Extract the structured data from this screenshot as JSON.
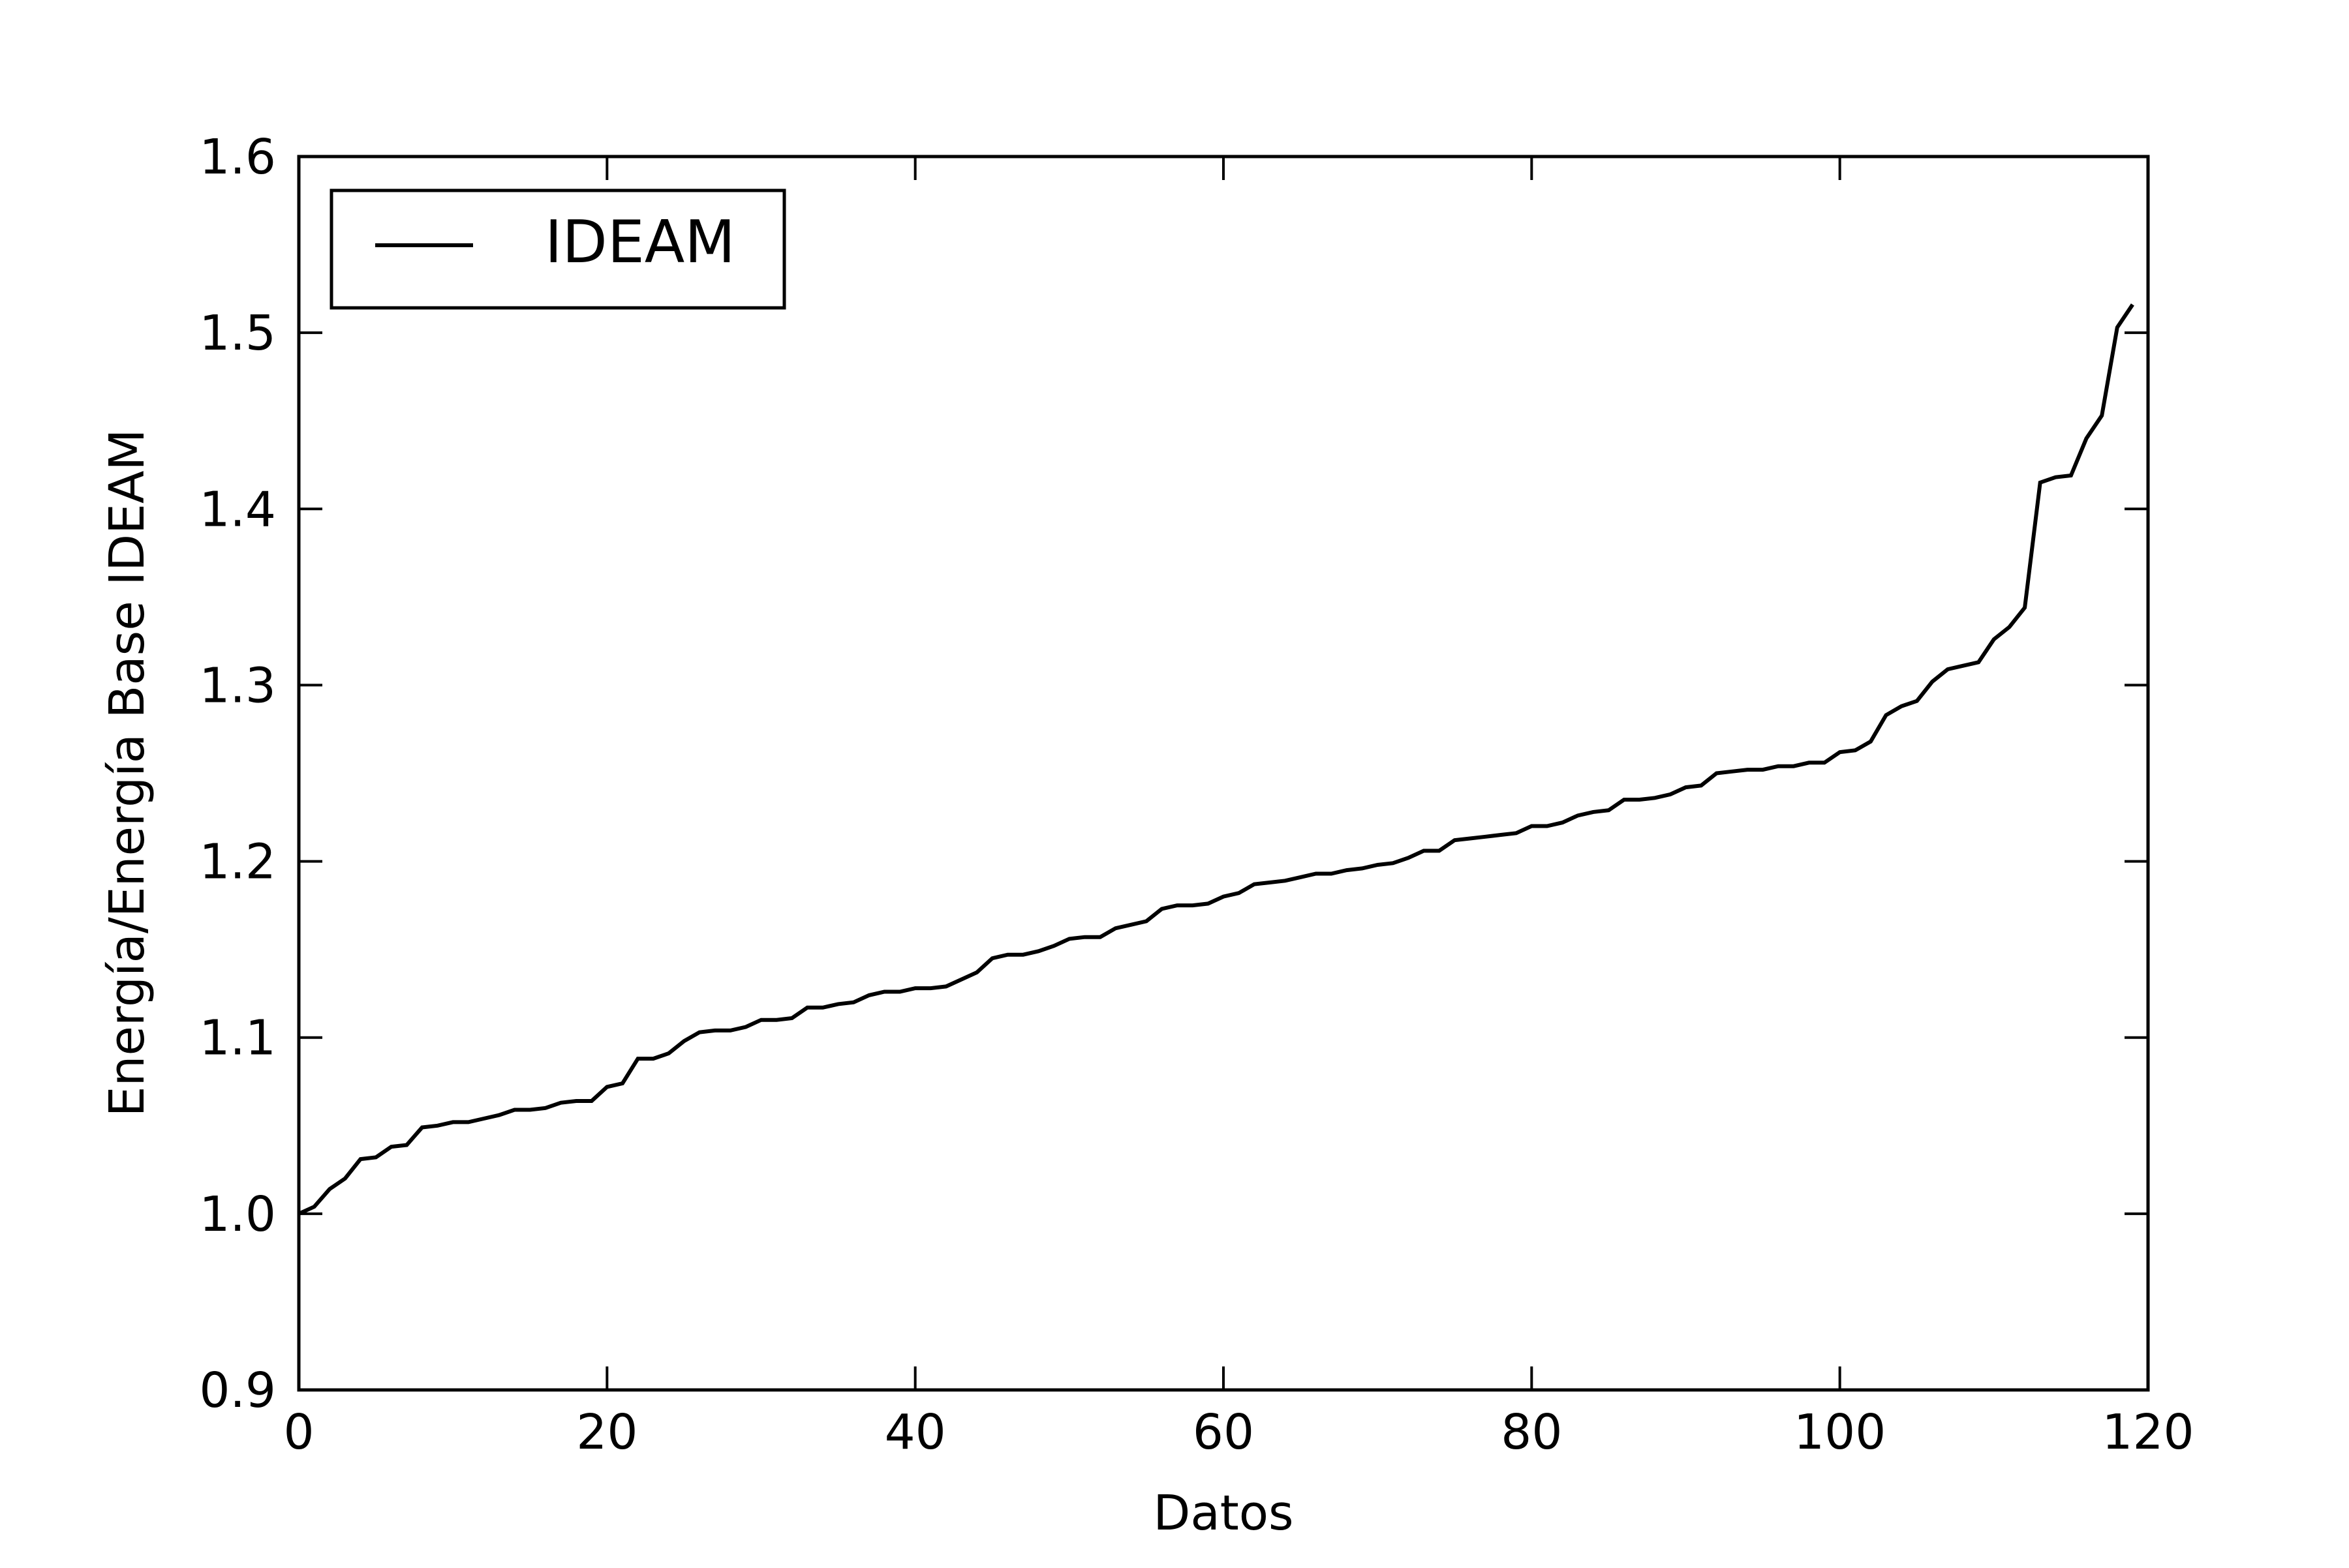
{
  "chart_data": {
    "type": "line",
    "title": "",
    "xlabel": "Datos",
    "ylabel": "Energía/Energía Base IDEAM",
    "xlim": [
      0,
      120
    ],
    "ylim": [
      0.9,
      1.6
    ],
    "x_ticks": [
      0,
      20,
      40,
      60,
      80,
      100,
      120
    ],
    "y_ticks": [
      0.9,
      1.0,
      1.1,
      1.2,
      1.3,
      1.4,
      1.5,
      1.6
    ],
    "x_tick_labels": [
      "0",
      "20",
      "40",
      "60",
      "80",
      "100",
      "120"
    ],
    "y_tick_labels": [
      "0.9",
      "1.0",
      "1.1",
      "1.2",
      "1.3",
      "1.4",
      "1.5",
      "1.6"
    ],
    "grid": false,
    "legend": {
      "position": "top-left",
      "entries": [
        "IDEAM"
      ]
    },
    "line_color": "#000000",
    "series": [
      {
        "name": "IDEAM",
        "x": [
          0,
          1,
          2,
          3,
          4,
          5,
          6,
          7,
          8,
          9,
          10,
          11,
          12,
          13,
          14,
          15,
          16,
          17,
          18,
          19,
          20,
          21,
          22,
          23,
          24,
          25,
          26,
          27,
          28,
          29,
          30,
          31,
          32,
          33,
          34,
          35,
          36,
          37,
          38,
          39,
          40,
          41,
          42,
          43,
          44,
          45,
          46,
          47,
          48,
          49,
          50,
          51,
          52,
          53,
          54,
          55,
          56,
          57,
          58,
          59,
          60,
          61,
          62,
          63,
          64,
          65,
          66,
          67,
          68,
          69,
          70,
          71,
          72,
          73,
          74,
          75,
          76,
          77,
          78,
          79,
          80,
          81,
          82,
          83,
          84,
          85,
          86,
          87,
          88,
          89,
          90,
          91,
          92,
          93,
          94,
          95,
          96,
          97,
          98,
          99,
          100,
          101,
          102,
          103,
          104,
          105,
          106,
          107,
          108,
          109,
          110,
          111,
          112,
          113,
          114,
          115,
          116,
          117,
          118,
          119
        ],
        "values": [
          1.0,
          1.004,
          1.014,
          1.02,
          1.031,
          1.032,
          1.038,
          1.039,
          1.049,
          1.05,
          1.052,
          1.052,
          1.054,
          1.056,
          1.059,
          1.059,
          1.06,
          1.063,
          1.064,
          1.064,
          1.072,
          1.074,
          1.088,
          1.088,
          1.091,
          1.098,
          1.103,
          1.104,
          1.104,
          1.106,
          1.11,
          1.11,
          1.111,
          1.117,
          1.117,
          1.119,
          1.12,
          1.124,
          1.126,
          1.126,
          1.128,
          1.128,
          1.129,
          1.133,
          1.137,
          1.145,
          1.147,
          1.147,
          1.149,
          1.152,
          1.156,
          1.157,
          1.157,
          1.162,
          1.164,
          1.166,
          1.173,
          1.175,
          1.175,
          1.176,
          1.18,
          1.182,
          1.187,
          1.188,
          1.189,
          1.191,
          1.193,
          1.193,
          1.195,
          1.196,
          1.198,
          1.199,
          1.202,
          1.206,
          1.206,
          1.212,
          1.213,
          1.214,
          1.215,
          1.216,
          1.22,
          1.22,
          1.222,
          1.226,
          1.228,
          1.229,
          1.235,
          1.235,
          1.236,
          1.238,
          1.242,
          1.243,
          1.25,
          1.251,
          1.252,
          1.252,
          1.254,
          1.254,
          1.256,
          1.256,
          1.262,
          1.263,
          1.268,
          1.283,
          1.288,
          1.291,
          1.302,
          1.309,
          1.311,
          1.313,
          1.326,
          1.333,
          1.344,
          1.415,
          1.418,
          1.419,
          1.44,
          1.453,
          1.503,
          1.516
        ]
      }
    ]
  }
}
